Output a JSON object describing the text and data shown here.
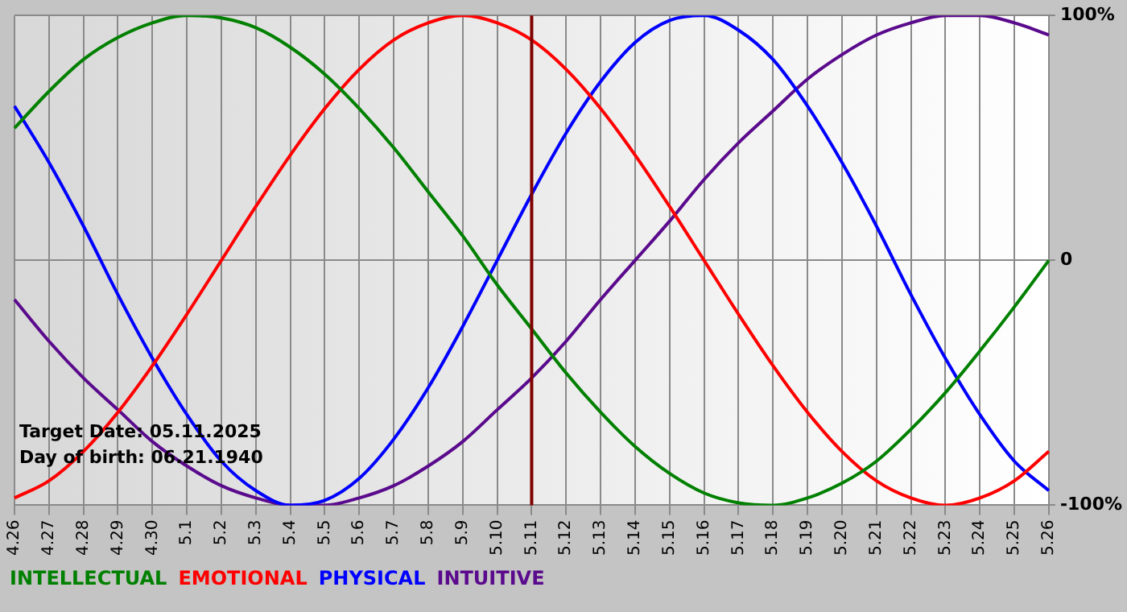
{
  "chart_data": {
    "type": "line",
    "categories": [
      "4.26",
      "4.27",
      "4.28",
      "4.29",
      "4.30",
      "5.1",
      "5.2",
      "5.3",
      "5.4",
      "5.5",
      "5.6",
      "5.7",
      "5.8",
      "5.9",
      "5.10",
      "5.11",
      "5.12",
      "5.13",
      "5.14",
      "5.15",
      "5.16",
      "5.17",
      "5.18",
      "5.19",
      "5.20",
      "5.21",
      "5.22",
      "5.23",
      "5.24",
      "5.25",
      "5.26"
    ],
    "series": [
      {
        "name": "INTELLECTUAL",
        "color": "#008000",
        "values": [
          54,
          69,
          82,
          91,
          97,
          100,
          99,
          95,
          87,
          76,
          62,
          46,
          28,
          10,
          -10,
          -28,
          -46,
          -62,
          -76,
          -87,
          -95,
          -99,
          -100,
          -97,
          -91,
          -82,
          -69,
          -54,
          -37,
          -19,
          0
        ]
      },
      {
        "name": "EMOTIONAL",
        "color": "#ff0000",
        "values": [
          -97,
          -90,
          -78,
          -62,
          -43,
          -22,
          0,
          22,
          43,
          62,
          78,
          90,
          97,
          100,
          97,
          90,
          78,
          62,
          43,
          22,
          0,
          -22,
          -43,
          -62,
          -78,
          -90,
          -97,
          -100,
          -97,
          -90,
          -78
        ]
      },
      {
        "name": "PHYSICAL",
        "color": "#0000ff",
        "values": [
          63,
          40,
          14,
          -14,
          -40,
          -63,
          -82,
          -94,
          -100,
          -98,
          -89,
          -73,
          -52,
          -27,
          0,
          27,
          52,
          73,
          89,
          98,
          100,
          94,
          82,
          63,
          40,
          14,
          -14,
          -40,
          -63,
          -82,
          -94
        ]
      },
      {
        "name": "INTUITIVE",
        "color": "#5a0a8c",
        "values": [
          -16,
          -33,
          -48,
          -61,
          -74,
          -84,
          -92,
          -97,
          -100,
          -100,
          -97,
          -92,
          -84,
          -74,
          -61,
          -48,
          -33,
          -16,
          0,
          16,
          33,
          48,
          61,
          74,
          84,
          92,
          97,
          100,
          100,
          97,
          92
        ]
      }
    ],
    "ylim": [
      -100,
      100
    ],
    "yticks": [
      {
        "value": -100,
        "label": "-100%"
      },
      0,
      {
        "value": 100,
        "label": "100%"
      }
    ],
    "ref_lines": [
      {
        "axis": "x",
        "value": "5.11",
        "color": "#800000"
      }
    ],
    "annotations": [
      "Target Date: 05.11.2025",
      "Day of birth: 06.21.1940"
    ],
    "grid": true,
    "legend": "bottom",
    "marker": "none",
    "line_style": "solid"
  }
}
